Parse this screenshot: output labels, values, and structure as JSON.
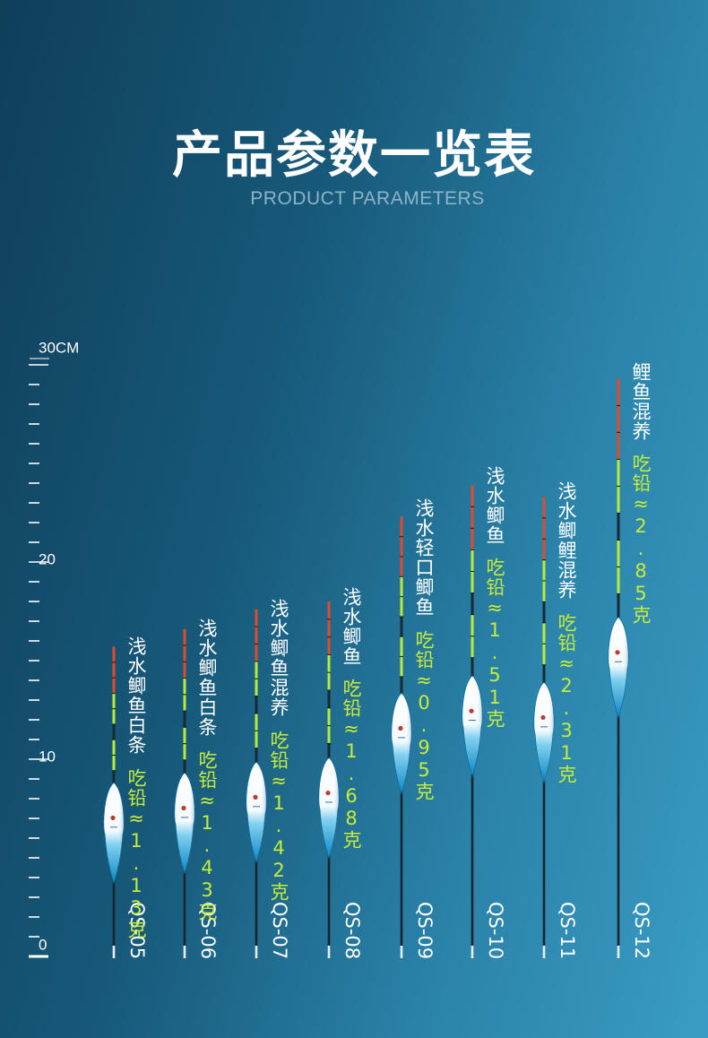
{
  "header": {
    "title": "产品参数一览表",
    "subtitle": "PRODUCT PARAMETERS"
  },
  "colors": {
    "text": "#ffffff",
    "lead": "#c7ec38",
    "tip_red": "#e24a2c",
    "tip_green": "#b8ea3a",
    "body_blue": "#1aa3d6"
  },
  "chart_data": {
    "type": "bar",
    "unit": "CM",
    "ruler_labels": [
      "30CM",
      "20",
      "10",
      "0"
    ],
    "ylim": [
      0,
      30
    ],
    "categories": [
      "QS-05",
      "QS-06",
      "QS-07",
      "QS-08",
      "QS-09",
      "QS-10",
      "QS-11",
      "QS-12"
    ],
    "descriptions": [
      "浅水鲫鱼白条",
      "浅水鲫鱼白条",
      "浅水鲫鱼混养",
      "浅水鲫鱼",
      "浅水轻口鲫鱼",
      "浅水鲫鱼",
      "浅水鲫鲤混养",
      "鲤鱼混养"
    ],
    "leads": [
      "吃铅≈1.13克",
      "吃铅≈1.43克",
      "吃铅≈1.42克",
      "吃铅≈1.68克",
      "吃铅≈0.95克",
      "吃铅≈1.51克",
      "吃铅≈2.31克",
      "吃铅≈2.85克"
    ],
    "series": [
      {
        "name": "",
        "values": [
          15.7,
          16.6,
          17.6,
          18.0,
          22.3,
          23.9,
          23.3,
          29.3
        ]
      }
    ]
  }
}
